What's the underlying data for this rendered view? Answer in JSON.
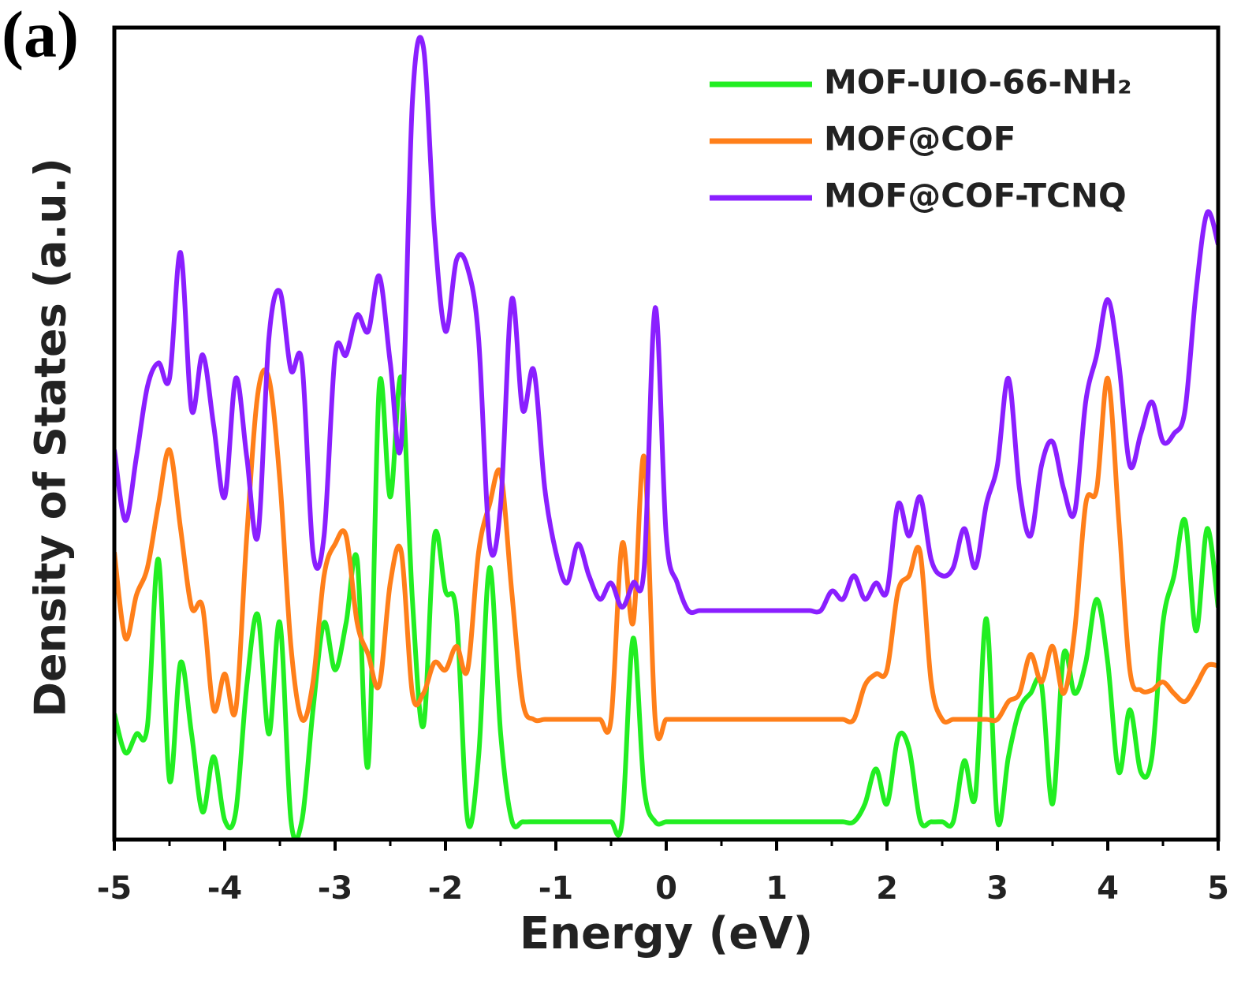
{
  "chart_data": {
    "type": "line",
    "panel_label": "(a)",
    "xlabel": "Energy (eV)",
    "ylabel": "Density of States (a.u.)",
    "x": [
      -5,
      -4.9,
      -4.8,
      -4.7,
      -4.6,
      -4.5,
      -4.4,
      -4.3,
      -4.2,
      -4.1,
      -4,
      -3.9,
      -3.8,
      -3.7,
      -3.6,
      -3.5,
      -3.4,
      -3.3,
      -3.2,
      -3.1,
      -3,
      -2.9,
      -2.8,
      -2.7,
      -2.6,
      -2.5,
      -2.4,
      -2.3,
      -2.2,
      -2.1,
      -2,
      -1.9,
      -1.8,
      -1.7,
      -1.6,
      -1.5,
      -1.4,
      -1.3,
      -1.2,
      -1.1,
      -1,
      -0.9,
      -0.8,
      -0.7,
      -0.6,
      -0.5,
      -0.4,
      -0.3,
      -0.2,
      -0.1,
      0,
      0.1,
      0.2,
      0.3,
      0.4,
      0.5,
      0.6,
      0.7,
      0.8,
      0.9,
      1,
      1.1,
      1.2,
      1.3,
      1.4,
      1.5,
      1.6,
      1.7,
      1.8,
      1.9,
      2,
      2.1,
      2.2,
      2.3,
      2.4,
      2.5,
      2.6,
      2.7,
      2.8,
      2.9,
      3,
      3.1,
      3.2,
      3.3,
      3.4,
      3.5,
      3.6,
      3.7,
      3.8,
      3.9,
      4,
      4.1,
      4.2,
      4.3,
      4.4,
      4.5,
      4.6,
      4.7,
      4.8,
      4.9,
      5
    ],
    "series": [
      {
        "name": "MOF-UIO-66-NH₂",
        "color": "#22ee22",
        "values": [
          15.5,
          10.7,
          13,
          14,
          34.5,
          7.3,
          21.8,
          13,
          3.4,
          10.2,
          2.4,
          3.4,
          19,
          27.7,
          13,
          26.7,
          2.4,
          2.4,
          16,
          26.7,
          20.9,
          26.7,
          34.5,
          9.2,
          55.8,
          42.2,
          56.8,
          29.6,
          14,
          37.4,
          30.6,
          27.7,
          2.4,
          10.2,
          33.5,
          13,
          2.4,
          2.2,
          2.2,
          2.2,
          2.2,
          2.2,
          2.2,
          2.2,
          2.2,
          2.2,
          2.2,
          24.8,
          6.3,
          2.2,
          2.2,
          2.2,
          2.2,
          2.2,
          2.2,
          2.2,
          2.2,
          2.2,
          2.2,
          2.2,
          2.2,
          2.2,
          2.2,
          2.2,
          2.2,
          2.2,
          2.2,
          2.2,
          4.4,
          8.7,
          4.4,
          12.6,
          11.2,
          2.4,
          2.2,
          2.2,
          2.2,
          9.7,
          5.3,
          27.2,
          2.4,
          10.2,
          16,
          18,
          19,
          4.4,
          22.8,
          18,
          21.8,
          29.6,
          21.8,
          8.3,
          16,
          8.3,
          10.2,
          26.7,
          32.5,
          39.3,
          25.7,
          38.3,
          28.6
        ]
      },
      {
        "name": "MOF@COF",
        "color": "#ff7f1a",
        "values": [
          35.4,
          24.8,
          30.1,
          33.5,
          41.3,
          48,
          38.3,
          28.6,
          28.6,
          16,
          20.4,
          16,
          37.4,
          54.9,
          56.8,
          44.2,
          23.8,
          14.8,
          19.4,
          32.5,
          36.4,
          37.4,
          26.7,
          22.8,
          19,
          31.6,
          35.4,
          18,
          18,
          21.8,
          20.9,
          23.8,
          20.9,
          35.4,
          41.3,
          45.1,
          30.6,
          17,
          14.8,
          14.8,
          14.8,
          14.8,
          14.8,
          14.8,
          14.8,
          14.8,
          36.4,
          26.7,
          47.1,
          14.8,
          14.8,
          14.8,
          14.8,
          14.8,
          14.8,
          14.8,
          14.8,
          14.8,
          14.8,
          14.8,
          14.8,
          14.8,
          14.8,
          14.8,
          14.8,
          14.8,
          14.8,
          14.8,
          19,
          20.4,
          20.9,
          30.6,
          32.5,
          35.4,
          19.4,
          14.8,
          14.8,
          14.8,
          14.8,
          14.8,
          14.8,
          17,
          18,
          22.8,
          19.4,
          23.8,
          18,
          25.7,
          41.3,
          43.2,
          56.8,
          39.3,
          20.9,
          18.4,
          18.4,
          19.4,
          18,
          17,
          19,
          21.4,
          21.4
        ]
      },
      {
        "name": "MOF@COF-TCNQ",
        "color": "#8a1fff",
        "values": [
          48,
          39.3,
          47.1,
          55.8,
          58.7,
          56.8,
          72.3,
          52.9,
          59.7,
          51,
          42.2,
          56.8,
          47.1,
          37.4,
          61.7,
          67.5,
          57.8,
          58.7,
          35.4,
          37.4,
          59.7,
          59.7,
          64.6,
          62.6,
          69.4,
          58.7,
          49,
          90.8,
          97.6,
          75.2,
          62.6,
          71.4,
          70.4,
          61.7,
          36.4,
          41.3,
          66.5,
          52.9,
          57.8,
          43.2,
          35.4,
          31.6,
          36.4,
          32.5,
          29.6,
          31.6,
          28.6,
          31.6,
          33.5,
          65.5,
          37.4,
          31.6,
          28.2,
          28.2,
          28.2,
          28.2,
          28.2,
          28.2,
          28.2,
          28.2,
          28.2,
          28.2,
          28.2,
          28.2,
          28.2,
          30.6,
          29.6,
          32.5,
          29.6,
          31.6,
          30.6,
          41.3,
          37.4,
          42.2,
          34.5,
          32.5,
          33.5,
          38.3,
          33.5,
          41.3,
          46.1,
          56.8,
          43.2,
          37.4,
          46.1,
          49,
          43.2,
          40.3,
          53.9,
          59.7,
          66.5,
          58.7,
          46.1,
          50,
          53.9,
          49,
          50,
          52.9,
          67.5,
          77.2,
          73.3
        ]
      }
    ],
    "xlim": [
      -5,
      5
    ],
    "xticks": [
      -5,
      -4,
      -3,
      -2,
      -1,
      0,
      1,
      2,
      3,
      4,
      5
    ],
    "ylim": [
      0,
      100
    ],
    "legend": "upper right"
  }
}
